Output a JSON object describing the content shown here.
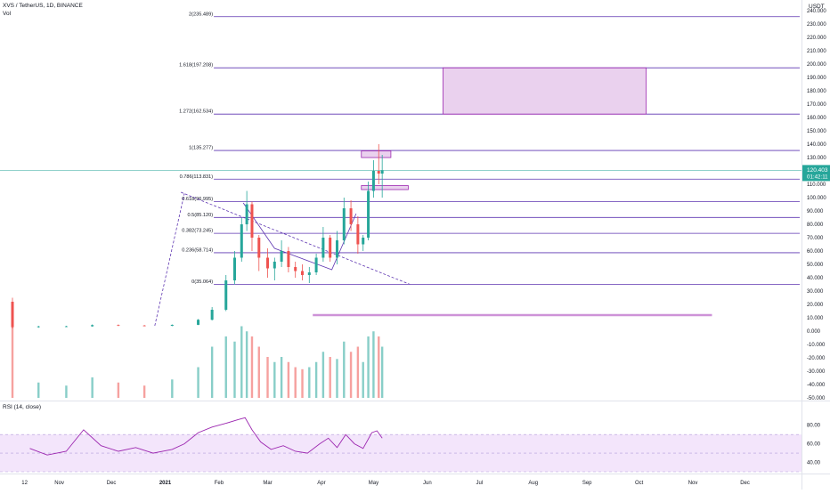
{
  "header": {
    "symbol_line": "XVS / TetherUS, 1D, BINANCE",
    "volume_label": "Vol",
    "rsi_label": "RSI (14, close)"
  },
  "price_axis": {
    "unit": "USDT",
    "tick_labels": [
      "240.000",
      "230.000",
      "220.000",
      "210.000",
      "200.000",
      "190.000",
      "180.000",
      "170.000",
      "160.000",
      "150.000",
      "140.000",
      "130.000",
      "120.000",
      "110.000",
      "100.000",
      "90.000",
      "80.000",
      "70.000",
      "60.000",
      "50.000",
      "40.000",
      "30.000",
      "20.000",
      "10.000",
      "0.000",
      "-10.000",
      "-20.000",
      "-30.000",
      "-40.000",
      "-50.000"
    ],
    "current_price": "120.403",
    "countdown": "01:42:11"
  },
  "rsi_axis": {
    "tick_labels": [
      "80.00",
      "60.00",
      "40.00"
    ]
  },
  "time_axis": {
    "tick_labels": [
      "12",
      "Nov",
      "Dec",
      "2021",
      "Feb",
      "Mar",
      "Apr",
      "May",
      "Jun",
      "Jul",
      "Aug",
      "Sep",
      "Oct",
      "Nov",
      "Dec"
    ]
  },
  "colors": {
    "fib_line": "#5e35b1",
    "rsi_line": "#9c27b0",
    "rsi_band": "#f3e5fb",
    "zone_fill": "#e1bee7",
    "zone_border": "#9c27b0",
    "up": "#26a69a",
    "down": "#ef5350",
    "price_line": "#26a69a",
    "support_line": "#ce93d8"
  },
  "chart_data": {
    "type": "line",
    "title": "XVS / TetherUS, 1D, BINANCE",
    "xlabel": "",
    "ylabel": "",
    "ylim": [
      -50,
      240
    ],
    "x_range": [
      "2020-10-05",
      "2021-12-31"
    ],
    "fib_levels": [
      {
        "ratio": "2",
        "price": 235.489,
        "label": "2(235.489)"
      },
      {
        "ratio": "1.618",
        "price": 197.208,
        "label": "1.618(197.208)"
      },
      {
        "ratio": "1.272",
        "price": 162.534,
        "label": "1.272(162.534)"
      },
      {
        "ratio": "1",
        "price": 135.277,
        "label": "1(135.277)"
      },
      {
        "ratio": "0.786",
        "price": 113.831,
        "label": "0.786(113.831)"
      },
      {
        "ratio": "0.618",
        "price": 96.995,
        "label": "0.618(96.995)"
      },
      {
        "ratio": "0.5",
        "price": 85.12,
        "label": "0.5(85.120)"
      },
      {
        "ratio": "0.382",
        "price": 73.245,
        "label": "0.382(73.245)"
      },
      {
        "ratio": "0.236",
        "price": 58.714,
        "label": "0.236(58.714)"
      },
      {
        "ratio": "0",
        "price": 35.064,
        "label": "0(35.064)"
      }
    ],
    "zones": [
      {
        "from": "2021-06-10",
        "to": "2021-10-05",
        "low": 162.534,
        "high": 197.208
      },
      {
        "from": "2021-04-24",
        "to": "2021-05-11",
        "low": 130,
        "high": 135
      },
      {
        "from": "2021-04-24",
        "to": "2021-05-21",
        "low": 106,
        "high": 109
      }
    ],
    "support_line": {
      "from": "2021-03-27",
      "to": "2021-11-12",
      "price": 12
    },
    "trend_lines": [
      {
        "style": "dashed",
        "points": [
          [
            "2021-01-10",
            104
          ],
          [
            "2021-05-22",
            35
          ]
        ]
      },
      {
        "style": "dashed",
        "points": [
          [
            "2020-12-26",
            4
          ],
          [
            "2021-01-12",
            103
          ]
        ]
      },
      {
        "style": "solid",
        "points": [
          [
            "2021-02-15",
            96
          ],
          [
            "2021-03-05",
            62
          ],
          [
            "2021-04-07",
            46
          ],
          [
            "2021-04-21",
            88
          ]
        ]
      }
    ],
    "candles": [
      {
        "date": "2020-10-05",
        "o": 22,
        "h": 25,
        "l": 2,
        "c": 3,
        "v": 0.9
      },
      {
        "date": "2020-10-20",
        "o": 3,
        "h": 4,
        "l": 2.5,
        "c": 3.5,
        "v": 0.15
      },
      {
        "date": "2020-11-05",
        "o": 3.5,
        "h": 4,
        "l": 3,
        "c": 3.6,
        "v": 0.12
      },
      {
        "date": "2020-11-20",
        "o": 3.6,
        "h": 5,
        "l": 3.3,
        "c": 4.5,
        "v": 0.2
      },
      {
        "date": "2020-12-05",
        "o": 4.5,
        "h": 5,
        "l": 3.8,
        "c": 4.2,
        "v": 0.15
      },
      {
        "date": "2020-12-20",
        "o": 4.2,
        "h": 4.6,
        "l": 3.6,
        "c": 4,
        "v": 0.12
      },
      {
        "date": "2021-01-05",
        "o": 4,
        "h": 5,
        "l": 3.7,
        "c": 4.7,
        "v": 0.18
      },
      {
        "date": "2021-01-20",
        "o": 4.7,
        "h": 9,
        "l": 4.5,
        "c": 8.5,
        "v": 0.3
      },
      {
        "date": "2021-01-28",
        "o": 8.5,
        "h": 18,
        "l": 8,
        "c": 16,
        "v": 0.5
      },
      {
        "date": "2021-02-05",
        "o": 16,
        "h": 42,
        "l": 15,
        "c": 38,
        "v": 0.6
      },
      {
        "date": "2021-02-10",
        "o": 38,
        "h": 60,
        "l": 35,
        "c": 55,
        "v": 0.55
      },
      {
        "date": "2021-02-14",
        "o": 55,
        "h": 85,
        "l": 52,
        "c": 80,
        "v": 0.7
      },
      {
        "date": "2021-02-17",
        "o": 80,
        "h": 105,
        "l": 75,
        "c": 95,
        "v": 0.65
      },
      {
        "date": "2021-02-20",
        "o": 95,
        "h": 97,
        "l": 60,
        "c": 70,
        "v": 0.6
      },
      {
        "date": "2021-02-24",
        "o": 70,
        "h": 72,
        "l": 45,
        "c": 55,
        "v": 0.5
      },
      {
        "date": "2021-03-01",
        "o": 55,
        "h": 62,
        "l": 40,
        "c": 47,
        "v": 0.4
      },
      {
        "date": "2021-03-05",
        "o": 47,
        "h": 55,
        "l": 38,
        "c": 52,
        "v": 0.35
      },
      {
        "date": "2021-03-09",
        "o": 52,
        "h": 68,
        "l": 48,
        "c": 60,
        "v": 0.4
      },
      {
        "date": "2021-03-13",
        "o": 60,
        "h": 63,
        "l": 44,
        "c": 48,
        "v": 0.35
      },
      {
        "date": "2021-03-17",
        "o": 48,
        "h": 52,
        "l": 40,
        "c": 45,
        "v": 0.3
      },
      {
        "date": "2021-03-21",
        "o": 45,
        "h": 50,
        "l": 38,
        "c": 42,
        "v": 0.28
      },
      {
        "date": "2021-03-25",
        "o": 42,
        "h": 48,
        "l": 36,
        "c": 44,
        "v": 0.3
      },
      {
        "date": "2021-03-29",
        "o": 44,
        "h": 58,
        "l": 42,
        "c": 55,
        "v": 0.35
      },
      {
        "date": "2021-04-02",
        "o": 55,
        "h": 78,
        "l": 52,
        "c": 70,
        "v": 0.45
      },
      {
        "date": "2021-04-06",
        "o": 70,
        "h": 72,
        "l": 52,
        "c": 55,
        "v": 0.4
      },
      {
        "date": "2021-04-10",
        "o": 55,
        "h": 75,
        "l": 50,
        "c": 68,
        "v": 0.38
      },
      {
        "date": "2021-04-14",
        "o": 68,
        "h": 100,
        "l": 65,
        "c": 92,
        "v": 0.55
      },
      {
        "date": "2021-04-18",
        "o": 92,
        "h": 98,
        "l": 75,
        "c": 80,
        "v": 0.45
      },
      {
        "date": "2021-04-22",
        "o": 80,
        "h": 86,
        "l": 58,
        "c": 65,
        "v": 0.5
      },
      {
        "date": "2021-04-25",
        "o": 65,
        "h": 72,
        "l": 60,
        "c": 70,
        "v": 0.35
      },
      {
        "date": "2021-04-28",
        "o": 70,
        "h": 112,
        "l": 68,
        "c": 105,
        "v": 0.6
      },
      {
        "date": "2021-05-01",
        "o": 105,
        "h": 128,
        "l": 100,
        "c": 120,
        "v": 0.65
      },
      {
        "date": "2021-05-04",
        "o": 120,
        "h": 140,
        "l": 110,
        "c": 118,
        "v": 0.6
      },
      {
        "date": "2021-05-06",
        "o": 118,
        "h": 132,
        "l": 100,
        "c": 120.403,
        "v": 0.5
      }
    ],
    "rsi": {
      "name": "RSI (14, close)",
      "band": [
        30,
        70
      ],
      "ylim": [
        30,
        95
      ],
      "points": [
        [
          "2020-10-15",
          55
        ],
        [
          "2020-10-25",
          48
        ],
        [
          "2020-11-05",
          52
        ],
        [
          "2020-11-15",
          75
        ],
        [
          "2020-11-25",
          58
        ],
        [
          "2020-12-05",
          52
        ],
        [
          "2020-12-15",
          56
        ],
        [
          "2020-12-25",
          50
        ],
        [
          "2021-01-05",
          54
        ],
        [
          "2021-01-12",
          60
        ],
        [
          "2021-01-20",
          72
        ],
        [
          "2021-01-28",
          78
        ],
        [
          "2021-02-05",
          82
        ],
        [
          "2021-02-12",
          86
        ],
        [
          "2021-02-16",
          88
        ],
        [
          "2021-02-20",
          75
        ],
        [
          "2021-02-25",
          62
        ],
        [
          "2021-03-03",
          54
        ],
        [
          "2021-03-10",
          58
        ],
        [
          "2021-03-17",
          52
        ],
        [
          "2021-03-24",
          50
        ],
        [
          "2021-03-31",
          60
        ],
        [
          "2021-04-05",
          66
        ],
        [
          "2021-04-10",
          56
        ],
        [
          "2021-04-15",
          70
        ],
        [
          "2021-04-20",
          60
        ],
        [
          "2021-04-25",
          55
        ],
        [
          "2021-04-30",
          72
        ],
        [
          "2021-05-03",
          74
        ],
        [
          "2021-05-06",
          66
        ]
      ]
    }
  }
}
